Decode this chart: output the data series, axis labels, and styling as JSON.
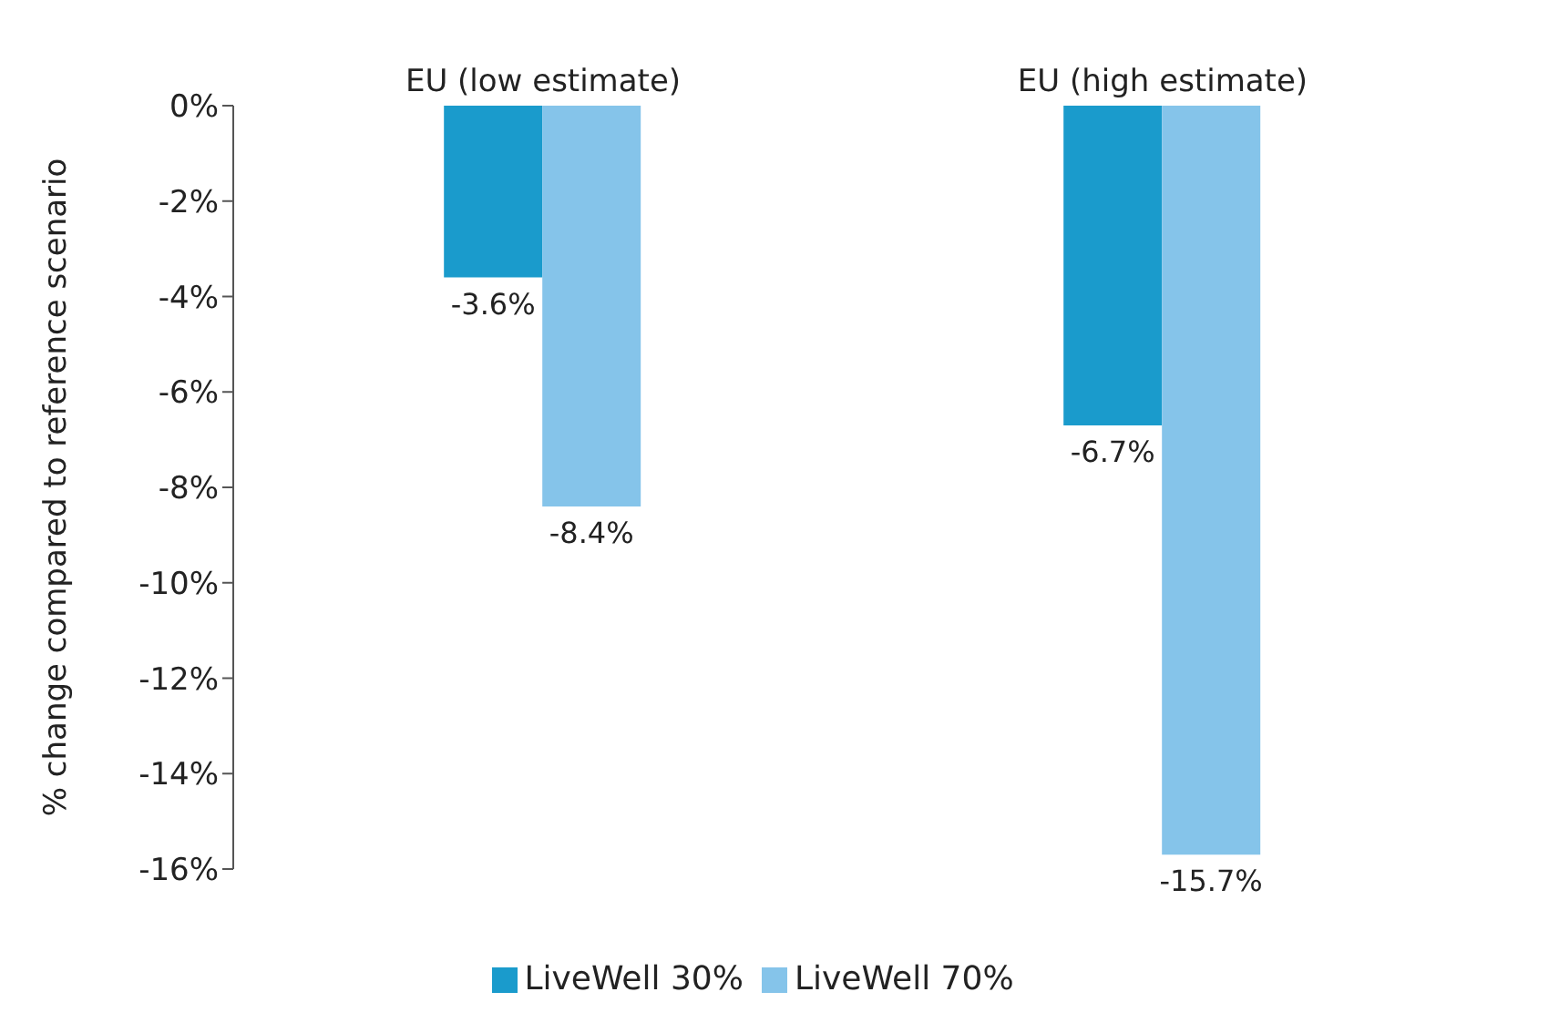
{
  "chart_data": {
    "type": "bar",
    "categories": [
      "EU (low estimate)",
      "EU (high estimate)"
    ],
    "ylabel": "% change compared to reference scenario",
    "series": [
      {
        "name": "LiveWell 30%",
        "color": "#1a9bcc",
        "values": [
          -3.6,
          -6.7
        ],
        "value_labels": [
          "-3.6%",
          "-6.7%"
        ]
      },
      {
        "name": "LiveWell 70%",
        "color": "#85c4ea",
        "values": [
          -8.4,
          -15.7
        ],
        "value_labels": [
          "-8.4%",
          "-15.7%"
        ]
      }
    ],
    "ylim": [
      -16,
      0
    ],
    "yticks": [
      {
        "value": -16,
        "label": "-16%"
      },
      {
        "value": -14,
        "label": "-14%"
      },
      {
        "value": -12,
        "label": "-12%"
      },
      {
        "value": -10,
        "label": "-10%"
      },
      {
        "value": -8,
        "label": "-8%"
      },
      {
        "value": -6,
        "label": "-6%"
      },
      {
        "value": -4,
        "label": "-4%"
      },
      {
        "value": -2,
        "label": "-2%"
      },
      {
        "value": 0,
        "label": "0%"
      }
    ],
    "grid": false,
    "legend": "bottom"
  }
}
